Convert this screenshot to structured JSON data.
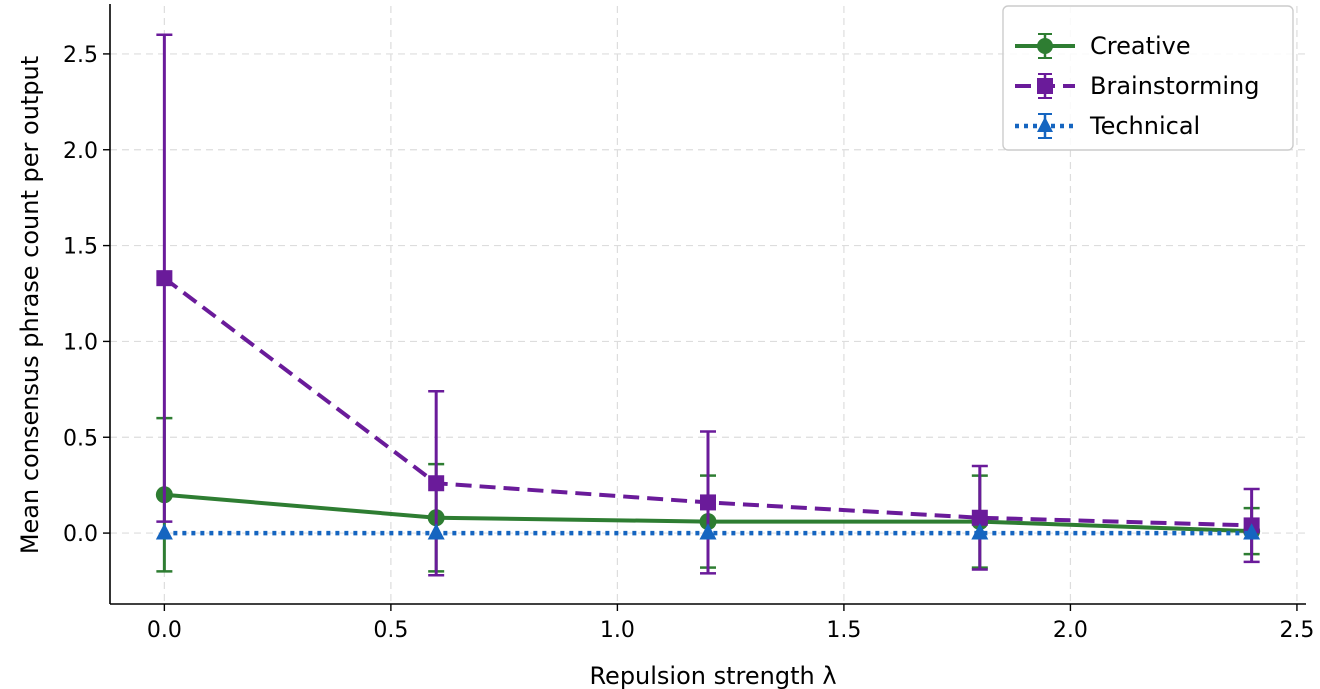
{
  "chart_data": {
    "type": "line",
    "title": "",
    "xlabel": "Repulsion strength λ",
    "ylabel": "Mean consensus phrase count per output",
    "xlim": [
      -0.12,
      2.52
    ],
    "ylim": [
      -0.37,
      2.75
    ],
    "x_ticks": [
      0.0,
      0.5,
      1.0,
      1.5,
      2.0,
      2.5
    ],
    "x_tick_labels": [
      "0.0",
      "0.5",
      "1.0",
      "1.5",
      "2.0",
      "2.5"
    ],
    "y_ticks": [
      0.0,
      0.5,
      1.0,
      1.5,
      2.0,
      2.5
    ],
    "y_tick_labels": [
      "0.0",
      "0.5",
      "1.0",
      "1.5",
      "2.0",
      "2.5"
    ],
    "grid": true,
    "legend_position": "top-right",
    "series": [
      {
        "name": "Creative",
        "color": "#2e7d32",
        "linestyle": "solid",
        "marker": "circle",
        "x": [
          0.0,
          0.6,
          1.2,
          1.8,
          2.4
        ],
        "y": [
          0.2,
          0.08,
          0.06,
          0.06,
          0.01
        ],
        "err": [
          0.4,
          0.28,
          0.24,
          0.24,
          0.12
        ]
      },
      {
        "name": "Brainstorming",
        "color": "#6a1b9a",
        "linestyle": "dashed",
        "marker": "square",
        "x": [
          0.0,
          0.6,
          1.2,
          1.8,
          2.4
        ],
        "y": [
          1.33,
          0.26,
          0.16,
          0.08,
          0.04
        ],
        "err": [
          1.27,
          0.48,
          0.37,
          0.27,
          0.19
        ]
      },
      {
        "name": "Technical",
        "color": "#1565c0",
        "linestyle": "dotted",
        "marker": "triangle",
        "x": [
          0.0,
          0.6,
          1.2,
          1.8,
          2.4
        ],
        "y": [
          0.0,
          0.0,
          0.0,
          0.0,
          0.0
        ],
        "err": [
          0.0,
          0.0,
          0.0,
          0.0,
          0.0
        ]
      }
    ]
  }
}
